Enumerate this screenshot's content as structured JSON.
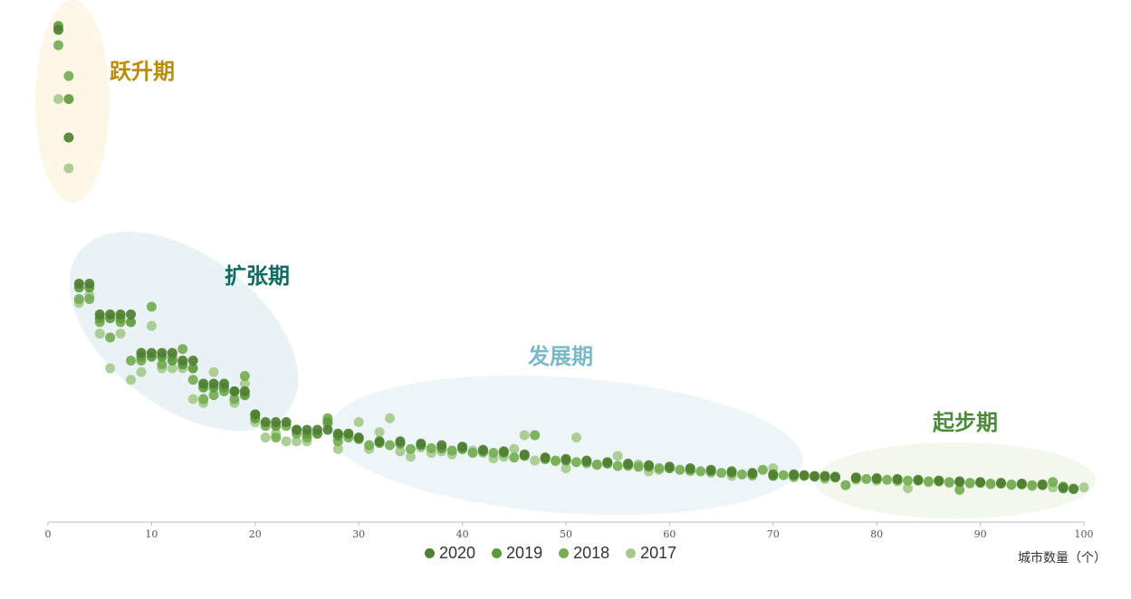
{
  "chart_data": {
    "type": "scatter",
    "xlabel": "城市数量（个）",
    "xlim": [
      0,
      100
    ],
    "x_ticks": [
      "0",
      "10",
      "20",
      "30",
      "40",
      "50",
      "60",
      "70",
      "80",
      "90",
      "100"
    ],
    "y_axis_visible": false,
    "grid": false,
    "legend_position": "bottom-center",
    "series": [
      {
        "name": "2020",
        "color": "#4f7f32",
        "values": [
          [
            1,
            64
          ],
          [
            2,
            50
          ],
          [
            3,
            31
          ],
          [
            4,
            31
          ],
          [
            5,
            27
          ],
          [
            6,
            27
          ],
          [
            7,
            27
          ],
          [
            8,
            27
          ],
          [
            9,
            22
          ],
          [
            10,
            22
          ],
          [
            11,
            22
          ],
          [
            12,
            22
          ],
          [
            13,
            21
          ],
          [
            14,
            21
          ],
          [
            15,
            18
          ],
          [
            16,
            18
          ],
          [
            17,
            18
          ],
          [
            18,
            17
          ],
          [
            19,
            17
          ],
          [
            20,
            14
          ],
          [
            21,
            13
          ],
          [
            22,
            13
          ],
          [
            23,
            13
          ],
          [
            24,
            12
          ],
          [
            25,
            12
          ],
          [
            26,
            12
          ],
          [
            27,
            12
          ],
          [
            28,
            11.5
          ],
          [
            29,
            11.5
          ],
          [
            30,
            11
          ],
          [
            32,
            10.5
          ],
          [
            34,
            10.5
          ],
          [
            36,
            10.2
          ],
          [
            38,
            10
          ],
          [
            40,
            9.8
          ],
          [
            42,
            9.4
          ],
          [
            44,
            9.2
          ],
          [
            46,
            8.8
          ],
          [
            48,
            8.4
          ],
          [
            50,
            8.2
          ],
          [
            52,
            8
          ],
          [
            54,
            7.8
          ],
          [
            56,
            7.6
          ],
          [
            58,
            7.4
          ],
          [
            60,
            7.2
          ],
          [
            62,
            7
          ],
          [
            64,
            6.8
          ],
          [
            66,
            6.6
          ],
          [
            68,
            6.4
          ],
          [
            70,
            6.2
          ],
          [
            72,
            6.2
          ],
          [
            73,
            6.1
          ],
          [
            74,
            6
          ],
          [
            75,
            6
          ],
          [
            76,
            5.9
          ],
          [
            78,
            5.8
          ],
          [
            80,
            5.7
          ],
          [
            82,
            5.6
          ],
          [
            84,
            5.5
          ],
          [
            86,
            5.4
          ],
          [
            88,
            5.3
          ],
          [
            90,
            5.2
          ],
          [
            92,
            5.1
          ],
          [
            94,
            5
          ],
          [
            96,
            4.9
          ],
          [
            98,
            4.4
          ],
          [
            99,
            4.3
          ]
        ]
      },
      {
        "name": "2019",
        "color": "#5e9a3c",
        "values": [
          [
            1,
            64.5
          ],
          [
            2,
            55
          ],
          [
            3,
            30.5
          ],
          [
            4,
            30.5
          ],
          [
            5,
            26.5
          ],
          [
            6,
            26.5
          ],
          [
            7,
            26.5
          ],
          [
            8,
            26
          ],
          [
            9,
            21.5
          ],
          [
            10,
            21.5
          ],
          [
            11,
            21.5
          ],
          [
            12,
            21
          ],
          [
            13,
            20.5
          ],
          [
            14,
            20
          ],
          [
            15,
            17.5
          ],
          [
            16,
            17.5
          ],
          [
            17,
            17.5
          ],
          [
            18,
            17
          ],
          [
            19,
            16.5
          ],
          [
            20,
            13.5
          ],
          [
            22,
            12.5
          ],
          [
            24,
            12
          ],
          [
            25,
            11.5
          ],
          [
            26,
            11.5
          ],
          [
            27,
            13
          ],
          [
            28,
            11.2
          ],
          [
            30,
            10.8
          ],
          [
            32,
            10.3
          ],
          [
            34,
            10.2
          ],
          [
            36,
            10
          ],
          [
            38,
            9.6
          ],
          [
            40,
            9.5
          ],
          [
            42,
            9.2
          ],
          [
            44,
            9
          ],
          [
            46,
            8.6
          ],
          [
            48,
            8.2
          ],
          [
            50,
            8
          ],
          [
            52,
            7.8
          ],
          [
            54,
            7.6
          ],
          [
            56,
            7.4
          ],
          [
            58,
            7.2
          ],
          [
            60,
            7
          ],
          [
            62,
            6.8
          ],
          [
            64,
            6.6
          ],
          [
            66,
            6.4
          ],
          [
            68,
            6.2
          ],
          [
            70,
            6
          ],
          [
            72,
            6
          ],
          [
            74,
            5.9
          ],
          [
            76,
            5.8
          ],
          [
            78,
            5.7
          ],
          [
            80,
            5.6
          ],
          [
            82,
            5.5
          ],
          [
            84,
            5.4
          ],
          [
            86,
            5.3
          ],
          [
            88,
            5.2
          ],
          [
            90,
            5.1
          ],
          [
            92,
            5
          ],
          [
            94,
            4.9
          ],
          [
            96,
            4.8
          ],
          [
            98,
            4.6
          ]
        ]
      },
      {
        "name": "2018",
        "color": "#74ad52",
        "values": [
          [
            1,
            62
          ],
          [
            2,
            58
          ],
          [
            3,
            29
          ],
          [
            4,
            29
          ],
          [
            5,
            26
          ],
          [
            6,
            24
          ],
          [
            7,
            26
          ],
          [
            8,
            21
          ],
          [
            9,
            21
          ],
          [
            10,
            28
          ],
          [
            11,
            20.5
          ],
          [
            12,
            21.5
          ],
          [
            13,
            22.5
          ],
          [
            14,
            18.5
          ],
          [
            15,
            16
          ],
          [
            16,
            16.5
          ],
          [
            17,
            17
          ],
          [
            18,
            16
          ],
          [
            19,
            19
          ],
          [
            20,
            14
          ],
          [
            21,
            12.5
          ],
          [
            22,
            11
          ],
          [
            23,
            12.5
          ],
          [
            24,
            11.5
          ],
          [
            25,
            11
          ],
          [
            26,
            11.5
          ],
          [
            27,
            13.5
          ],
          [
            28,
            10.5
          ],
          [
            29,
            11
          ],
          [
            31,
            10
          ],
          [
            33,
            10
          ],
          [
            35,
            9.5
          ],
          [
            37,
            9.6
          ],
          [
            39,
            9.3
          ],
          [
            41,
            9
          ],
          [
            43,
            9
          ],
          [
            45,
            8.4
          ],
          [
            47,
            11.3
          ],
          [
            49,
            8
          ],
          [
            51,
            7.8
          ],
          [
            53,
            7.5
          ],
          [
            55,
            7.3
          ],
          [
            57,
            7.2
          ],
          [
            59,
            7
          ],
          [
            61,
            6.8
          ],
          [
            63,
            6.6
          ],
          [
            65,
            6.4
          ],
          [
            67,
            6.2
          ],
          [
            69,
            6.8
          ],
          [
            71,
            6.1
          ],
          [
            73,
            6
          ],
          [
            75,
            5.8
          ],
          [
            77,
            4.8
          ],
          [
            79,
            5.6
          ],
          [
            81,
            5.5
          ],
          [
            83,
            5.4
          ],
          [
            85,
            5.3
          ],
          [
            87,
            5.2
          ],
          [
            88,
            4.2
          ],
          [
            89,
            5.1
          ],
          [
            91,
            5
          ],
          [
            93,
            4.9
          ],
          [
            95,
            4.8
          ],
          [
            97,
            5.2
          ]
        ]
      },
      {
        "name": "2017",
        "color": "#a6ca8d",
        "values": [
          [
            1,
            55
          ],
          [
            2,
            46
          ],
          [
            3,
            28.5
          ],
          [
            4,
            29.5
          ],
          [
            5,
            24.5
          ],
          [
            6,
            20
          ],
          [
            7,
            24.5
          ],
          [
            8,
            18.5
          ],
          [
            9,
            19.5
          ],
          [
            10,
            25.5
          ],
          [
            11,
            20
          ],
          [
            12,
            20
          ],
          [
            13,
            20
          ],
          [
            14,
            16
          ],
          [
            15,
            15.5
          ],
          [
            16,
            19.5
          ],
          [
            17,
            17.5
          ],
          [
            18,
            15.5
          ],
          [
            19,
            18
          ],
          [
            20,
            13
          ],
          [
            21,
            11
          ],
          [
            22,
            11.5
          ],
          [
            23,
            10.5
          ],
          [
            24,
            10.5
          ],
          [
            25,
            10.5
          ],
          [
            26,
            11.5
          ],
          [
            27,
            12.8
          ],
          [
            28,
            9.5
          ],
          [
            29,
            11.5
          ],
          [
            30,
            13
          ],
          [
            31,
            9.5
          ],
          [
            32,
            11.7
          ],
          [
            33,
            13.5
          ],
          [
            34,
            9.2
          ],
          [
            35,
            8.5
          ],
          [
            36,
            9.7
          ],
          [
            37,
            9
          ],
          [
            38,
            9.2
          ],
          [
            39,
            8.8
          ],
          [
            40,
            9.8
          ],
          [
            41,
            9.3
          ],
          [
            42,
            9
          ],
          [
            43,
            8.3
          ],
          [
            44,
            8.5
          ],
          [
            45,
            9.5
          ],
          [
            46,
            11.3
          ],
          [
            47,
            8
          ],
          [
            48,
            8.4
          ],
          [
            49,
            7.9
          ],
          [
            50,
            7
          ],
          [
            51,
            11
          ],
          [
            52,
            7.6
          ],
          [
            53,
            7.4
          ],
          [
            55,
            8.6
          ],
          [
            56,
            7.3
          ],
          [
            57,
            7.5
          ],
          [
            58,
            6.6
          ],
          [
            59,
            6.8
          ],
          [
            60,
            7
          ],
          [
            62,
            6.6
          ],
          [
            64,
            6.4
          ],
          [
            66,
            6
          ],
          [
            68,
            6
          ],
          [
            70,
            7
          ],
          [
            72,
            5.8
          ],
          [
            75,
            5.6
          ],
          [
            78,
            5.5
          ],
          [
            80,
            5.4
          ],
          [
            82,
            5.3
          ],
          [
            83,
            4.4
          ],
          [
            85,
            5.2
          ],
          [
            87,
            5.1
          ],
          [
            89,
            5
          ],
          [
            91,
            4.9
          ],
          [
            93,
            4.8
          ],
          [
            95,
            4.7
          ],
          [
            97,
            4.5
          ],
          [
            99,
            4.4
          ],
          [
            100,
            4.5
          ]
        ]
      }
    ],
    "annotations": [
      {
        "text": "跃升期",
        "color": "#b98c0a"
      },
      {
        "text": "扩张期",
        "color": "#0f6a60"
      },
      {
        "text": "发展期",
        "color": "#7ab9c7"
      },
      {
        "text": "起步期",
        "color": "#4c8a3a"
      }
    ]
  }
}
